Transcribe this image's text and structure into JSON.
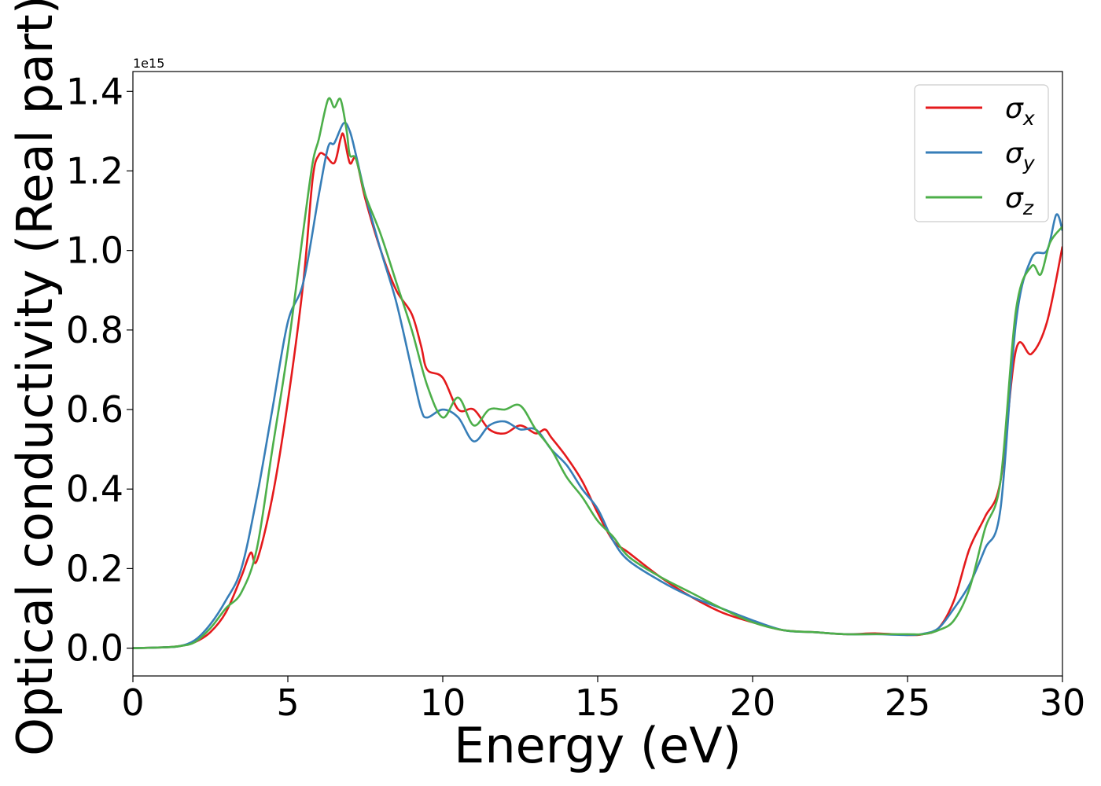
{
  "chart_data": {
    "type": "line",
    "title": "",
    "xlabel": "Energy (eV)",
    "ylabel": "Optical conductivity (Real part)",
    "y_offset_label": "1e15",
    "xlim": [
      0,
      30
    ],
    "ylim": [
      -0.07,
      1.45
    ],
    "xticks": [
      0,
      5,
      10,
      15,
      20,
      25,
      30
    ],
    "xtick_labels": [
      "0",
      "5",
      "10",
      "15",
      "20",
      "25",
      "30"
    ],
    "yticks": [
      0.0,
      0.2,
      0.4,
      0.6,
      0.8,
      1.0,
      1.2,
      1.4
    ],
    "ytick_labels": [
      "0.0",
      "0.2",
      "0.4",
      "0.6",
      "0.8",
      "1.0",
      "1.2",
      "1.4"
    ],
    "grid": false,
    "legend_position": "top-right",
    "series": [
      {
        "name": "σx",
        "legend_base": "σ",
        "legend_sub": "x",
        "color": "#e41a1c",
        "x": [
          0,
          1,
          1.5,
          2,
          2.5,
          3,
          3.5,
          3.8,
          4,
          4.5,
          5,
          5.5,
          5.8,
          6,
          6.2,
          6.5,
          6.7,
          6.8,
          7,
          7.2,
          7.5,
          8,
          8.5,
          9,
          9.3,
          9.5,
          10,
          10.5,
          11,
          11.5,
          12,
          12.5,
          13,
          13.3,
          13.5,
          14,
          14.5,
          15,
          15.5,
          16,
          17,
          18,
          19,
          20,
          21,
          22,
          23,
          24,
          25,
          25.5,
          26,
          26.5,
          27,
          27.5,
          28,
          28.5,
          29,
          29.5,
          30
        ],
        "values": [
          0,
          0.002,
          0.005,
          0.015,
          0.04,
          0.09,
          0.18,
          0.24,
          0.22,
          0.38,
          0.62,
          0.92,
          1.18,
          1.24,
          1.24,
          1.22,
          1.28,
          1.29,
          1.22,
          1.23,
          1.13,
          1.0,
          0.9,
          0.84,
          0.76,
          0.7,
          0.68,
          0.6,
          0.6,
          0.55,
          0.54,
          0.56,
          0.54,
          0.55,
          0.53,
          0.48,
          0.42,
          0.34,
          0.27,
          0.24,
          0.18,
          0.13,
          0.09,
          0.065,
          0.045,
          0.04,
          0.035,
          0.037,
          0.033,
          0.035,
          0.05,
          0.12,
          0.25,
          0.33,
          0.42,
          0.75,
          0.74,
          0.82,
          1.01
        ]
      },
      {
        "name": "σy",
        "legend_base": "σ",
        "legend_sub": "y",
        "color": "#377eb8",
        "x": [
          0,
          1,
          1.5,
          2,
          2.5,
          3,
          3.5,
          4,
          4.5,
          5,
          5.5,
          6,
          6.3,
          6.5,
          6.8,
          7,
          7.2,
          7.5,
          8,
          8.5,
          9,
          9.3,
          9.5,
          10,
          10.5,
          11,
          11.5,
          12,
          12.5,
          13,
          13.5,
          14,
          14.5,
          15,
          15.5,
          16,
          17,
          18,
          19,
          20,
          21,
          22,
          23,
          24,
          25,
          25.5,
          26,
          26.5,
          27,
          27.5,
          28,
          28.5,
          29,
          29.5,
          29.8,
          30
        ],
        "values": [
          0,
          0.002,
          0.005,
          0.02,
          0.06,
          0.12,
          0.2,
          0.38,
          0.6,
          0.82,
          0.92,
          1.14,
          1.26,
          1.27,
          1.32,
          1.3,
          1.24,
          1.14,
          1.0,
          0.87,
          0.7,
          0.6,
          0.58,
          0.6,
          0.58,
          0.52,
          0.56,
          0.57,
          0.55,
          0.55,
          0.5,
          0.46,
          0.4,
          0.35,
          0.27,
          0.22,
          0.17,
          0.13,
          0.1,
          0.07,
          0.045,
          0.04,
          0.035,
          0.035,
          0.033,
          0.036,
          0.05,
          0.1,
          0.16,
          0.25,
          0.35,
          0.82,
          0.98,
          1.0,
          1.09,
          1.05
        ]
      },
      {
        "name": "σz",
        "legend_base": "σ",
        "legend_sub": "z",
        "color": "#4daf4a",
        "x": [
          0,
          1,
          1.5,
          2,
          2.5,
          3,
          3.5,
          4,
          4.5,
          5,
          5.5,
          5.8,
          6,
          6.3,
          6.5,
          6.7,
          6.9,
          7,
          7.2,
          7.5,
          8,
          8.5,
          9,
          9.5,
          10,
          10.5,
          11,
          11.5,
          12,
          12.5,
          13,
          13.5,
          14,
          14.5,
          15,
          15.5,
          16,
          17,
          18,
          19,
          20,
          21,
          22,
          23,
          24,
          25,
          25.5,
          26,
          26.5,
          27,
          27.5,
          28,
          28.5,
          29,
          29.3,
          29.6,
          30
        ],
        "values": [
          0,
          0.002,
          0.005,
          0.015,
          0.05,
          0.1,
          0.14,
          0.25,
          0.5,
          0.75,
          1.05,
          1.22,
          1.28,
          1.38,
          1.36,
          1.38,
          1.3,
          1.24,
          1.23,
          1.14,
          1.04,
          0.92,
          0.8,
          0.66,
          0.58,
          0.63,
          0.56,
          0.6,
          0.6,
          0.61,
          0.55,
          0.5,
          0.43,
          0.38,
          0.32,
          0.28,
          0.23,
          0.18,
          0.14,
          0.1,
          0.065,
          0.045,
          0.04,
          0.035,
          0.035,
          0.035,
          0.035,
          0.045,
          0.07,
          0.15,
          0.3,
          0.42,
          0.85,
          0.96,
          0.94,
          1.02,
          1.06
        ]
      }
    ]
  }
}
